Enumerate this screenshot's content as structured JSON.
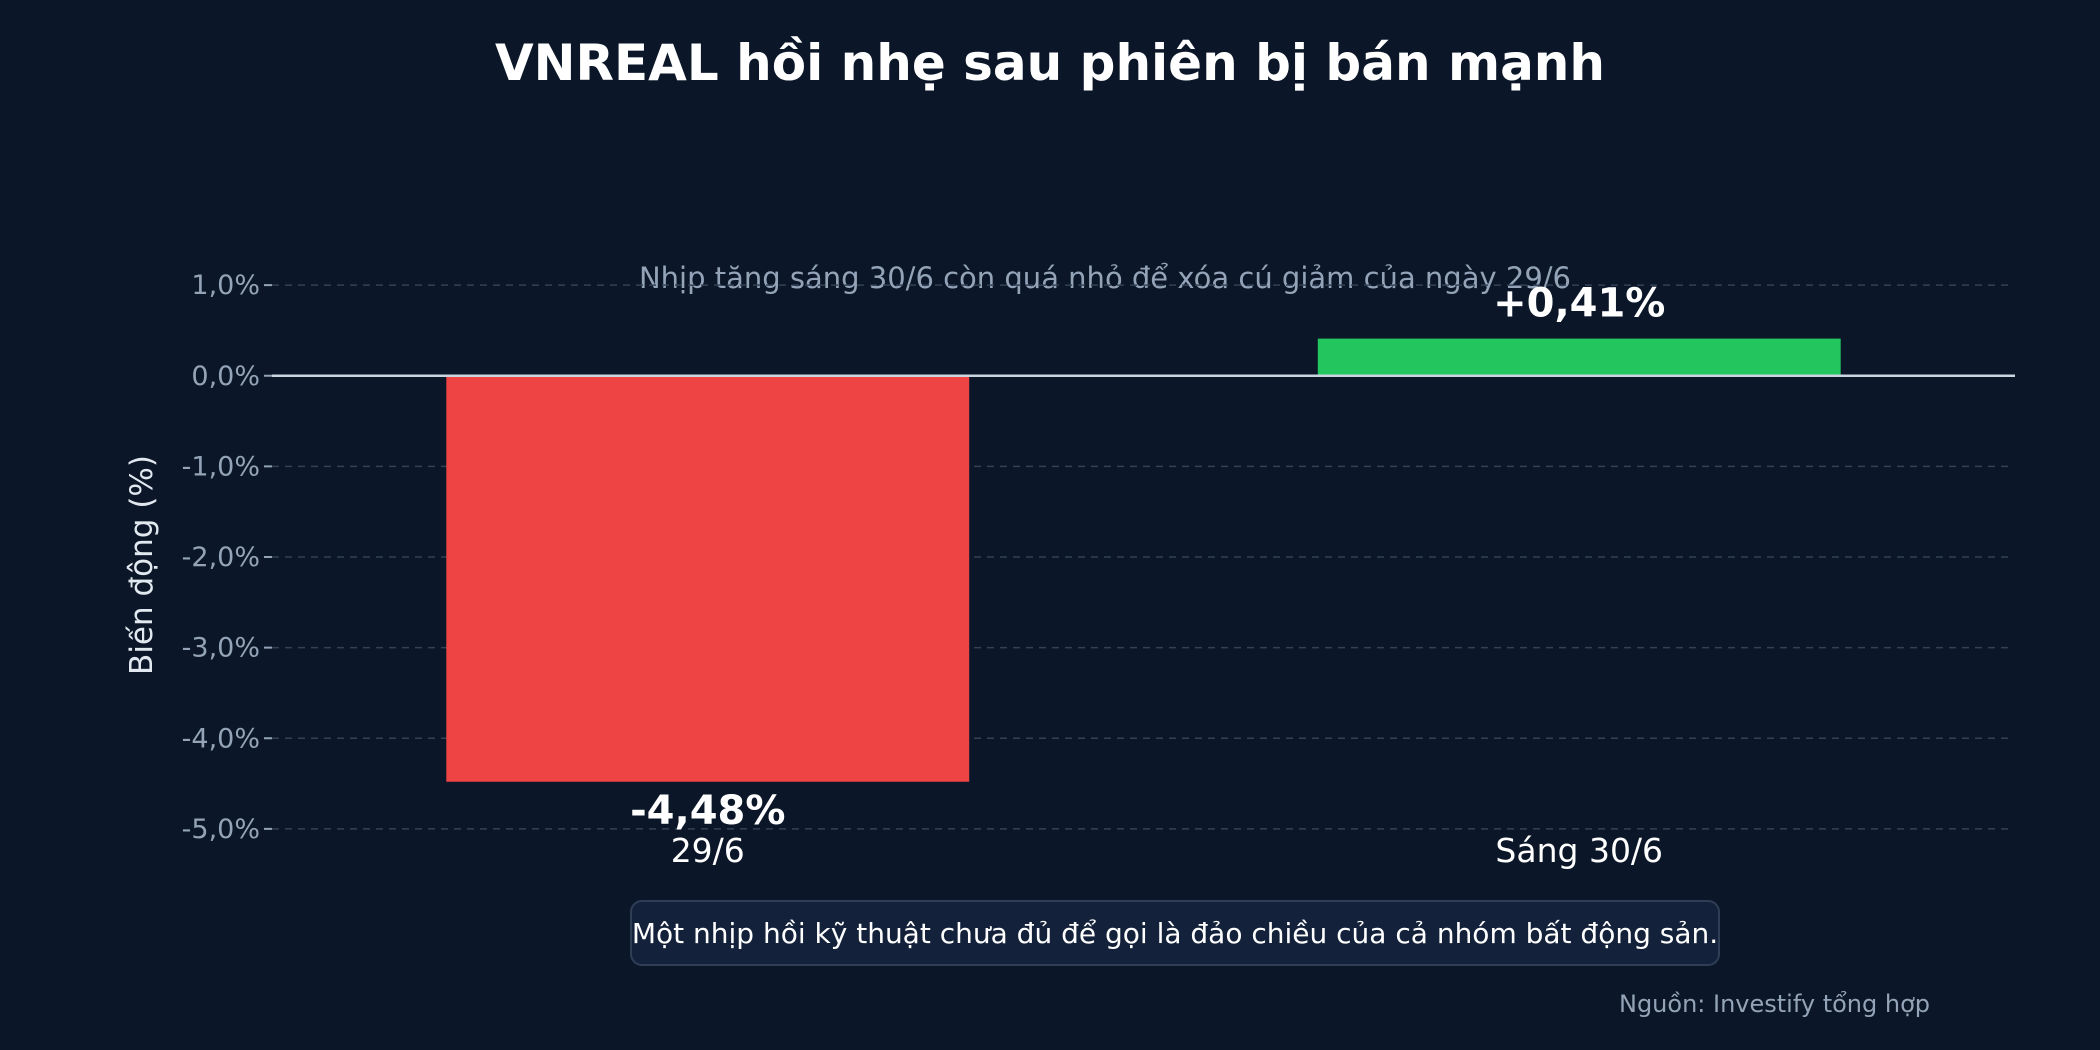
{
  "chart_data": {
    "type": "bar",
    "title": "VNREAL hồi nhẹ sau phiên bị bán mạnh",
    "subtitle": "Nhịp tăng sáng 30/6 còn quá nhỏ để xóa cú giảm của ngày 29/6",
    "ylabel": "Biến động (%)",
    "xlabel": "",
    "categories": [
      "29/6",
      "Sáng 30/6"
    ],
    "values": [
      -4.48,
      0.41
    ],
    "data_labels": [
      "-4,48%",
      "+0,41%"
    ],
    "bar_colors": [
      "#ef4444",
      "#22c55e"
    ],
    "ylim": [
      -5.2,
      1.2
    ],
    "yticks": [
      1.0,
      0.0,
      -1.0,
      -2.0,
      -3.0,
      -4.0,
      -5.0
    ],
    "ytick_labels": [
      "1,0%",
      "0,0%",
      "-1,0%",
      "-2,0%",
      "-3,0%",
      "-4,0%",
      "-5,0%"
    ],
    "grid": true,
    "zero_line": true
  },
  "note": "Một nhịp hồi kỹ thuật chưa đủ để gọi là đảo chiều của cả nhóm bất động sản.",
  "source": "Nguồn: Investify tổng hợp",
  "colors": {
    "background": "#0b1728",
    "grid": "#334155",
    "zero_line": "#cbd5e1",
    "negative": "#ef4444",
    "positive": "#22c55e"
  }
}
